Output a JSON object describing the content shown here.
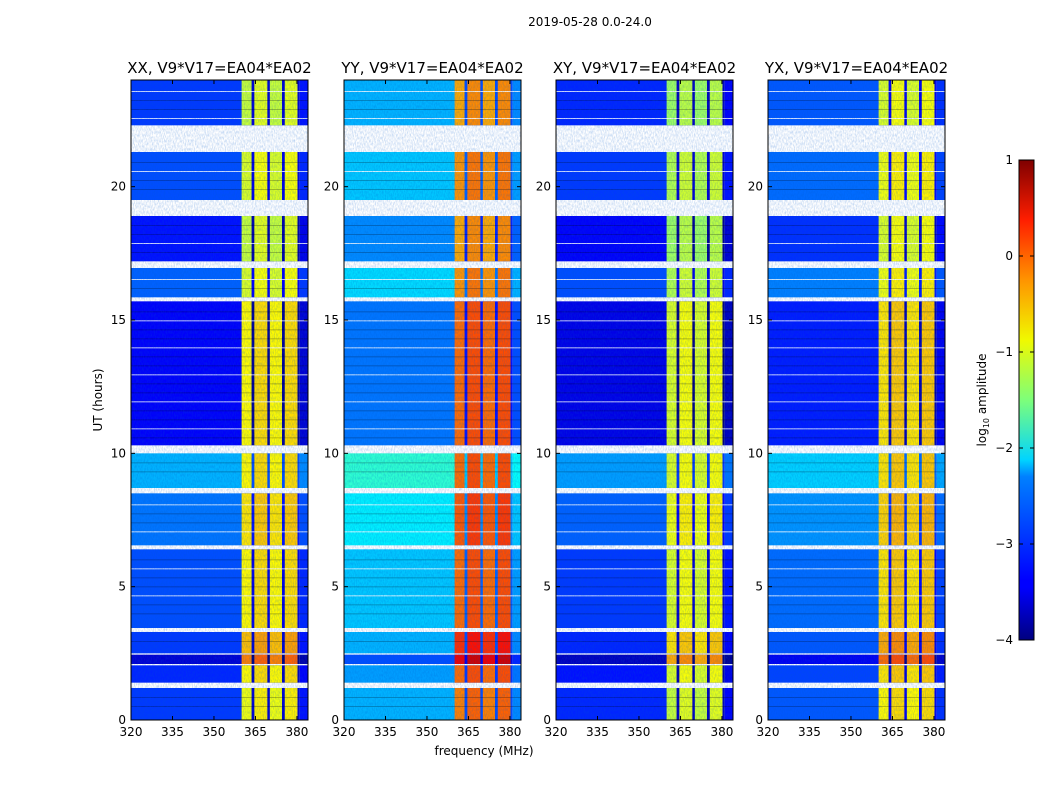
{
  "chart_data": {
    "type": "heatmap",
    "title": "2019-05-28 0.0-24.0",
    "xlabel": "frequency (MHz)",
    "ylabel": "UT (hours)",
    "xlim": [
      320,
      384
    ],
    "ylim": [
      0,
      24
    ],
    "xticks": [
      320,
      335,
      350,
      365,
      380
    ],
    "yticks": [
      0,
      5,
      10,
      15,
      20
    ],
    "colorbar": {
      "label_prefix": "log",
      "label_sub": "10",
      "label_suffix": " amplitude",
      "range": [
        -4,
        1
      ],
      "ticks": [
        1,
        0,
        -1,
        -2,
        -3,
        -4
      ],
      "tick_labels": [
        "1",
        "0",
        "−1",
        "−2",
        "−3",
        "−4"
      ],
      "colormap": "jet"
    },
    "rfi_band_columns_mhz": [
      [
        360,
        363.6
      ],
      [
        364.6,
        369.3
      ],
      [
        370.2,
        374.6
      ],
      [
        375.6,
        380.2
      ]
    ],
    "rfi_band_edge_mhz": 381,
    "time_segments_hours": [
      {
        "t": [
          0.0,
          1.2
        ],
        "quiet": -3.1,
        "band": -0.9
      },
      {
        "t": [
          1.4,
          2.05
        ],
        "quiet": -3.2,
        "band": -0.8
      },
      {
        "t": [
          2.1,
          2.45
        ],
        "quiet": -3.6,
        "band": -0.2
      },
      {
        "t": [
          2.5,
          3.3
        ],
        "quiet": -3.1,
        "band": -0.5
      },
      {
        "t": [
          3.45,
          6.4
        ],
        "quiet": -3.0,
        "band": -0.8
      },
      {
        "t": [
          6.55,
          8.5
        ],
        "quiet": -2.8,
        "band": -0.7
      },
      {
        "t": [
          8.7,
          10.0
        ],
        "quiet": -2.5,
        "band": -0.8
      },
      {
        "t": [
          10.3,
          15.7
        ],
        "quiet": -3.4,
        "band": -0.8
      },
      {
        "t": [
          15.85,
          16.95
        ],
        "quiet": -2.9,
        "band": -1.0
      },
      {
        "t": [
          17.2,
          18.9
        ],
        "quiet": -3.3,
        "band": -1.1
      },
      {
        "t": [
          19.5,
          21.3
        ],
        "quiet": -3.0,
        "band": -1.0
      },
      {
        "t": [
          22.3,
          24.0
        ],
        "quiet": -3.1,
        "band": -1.1
      }
    ],
    "panels": [
      {
        "title": "XX, V9*V17=EA04*EA02",
        "quiet_offset": 0.0,
        "band_offset": 0.0
      },
      {
        "title": "YY, V9*V17=EA04*EA02",
        "quiet_offset": 0.6,
        "band_offset": 0.7
      },
      {
        "title": "XY, V9*V17=EA04*EA02",
        "quiet_offset": -0.1,
        "band_offset": -0.2
      },
      {
        "title": "YX, V9*V17=EA04*EA02",
        "quiet_offset": 0.15,
        "band_offset": 0.1
      }
    ]
  }
}
